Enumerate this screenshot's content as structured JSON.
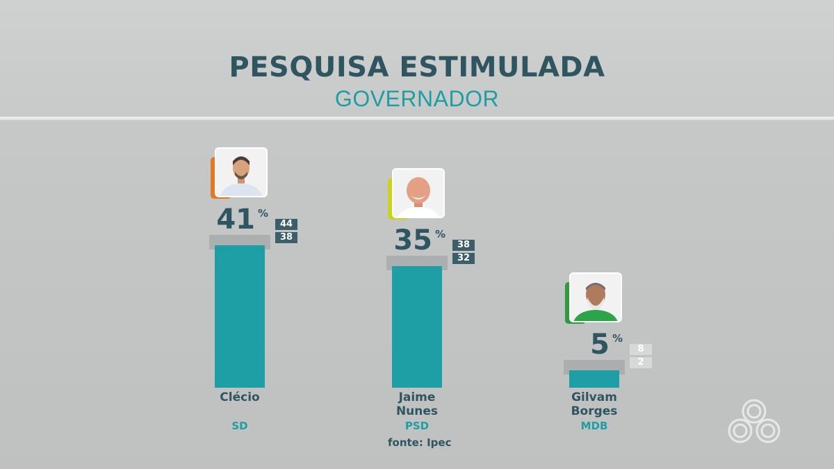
{
  "title": "PESQUISA ESTIMULADA",
  "subtitle": "GOVERNADOR",
  "source": "fonte: Ipec",
  "chart_data": {
    "type": "bar",
    "title": "PESQUISA ESTIMULADA",
    "subtitle": "GOVERNADOR",
    "categories": [
      "Clécio",
      "Jaime Nunes",
      "Gilvam Borges"
    ],
    "values": [
      41,
      35,
      5
    ],
    "unit": "%",
    "ylim": [
      0,
      50
    ],
    "candidates": [
      {
        "name_line1": "Clécio",
        "name_line2": "",
        "party": "SD",
        "value": 41,
        "value_label": "41",
        "max": 44,
        "max_label": "44",
        "min": 38,
        "min_label": "38",
        "accent": "#e87722",
        "photo_icon": "candidate-photo"
      },
      {
        "name_line1": "Jaime",
        "name_line2": "Nunes",
        "party": "PSD",
        "value": 35,
        "value_label": "35",
        "max": 38,
        "max_label": "38",
        "min": 32,
        "min_label": "32",
        "accent": "#c9d21e",
        "photo_icon": "candidate-photo"
      },
      {
        "name_line1": "Gilvam",
        "name_line2": "Borges",
        "party": "MDB",
        "value": 5,
        "value_label": "5",
        "max": 8,
        "max_label": "8",
        "min": 2,
        "min_label": "2",
        "accent": "#2e9b3a",
        "photo_icon": "candidate-photo"
      }
    ],
    "percent_sign": "%",
    "colors": {
      "bar": "#1e9ea5",
      "margin": "#a9acac",
      "text": "#2f5560"
    }
  }
}
